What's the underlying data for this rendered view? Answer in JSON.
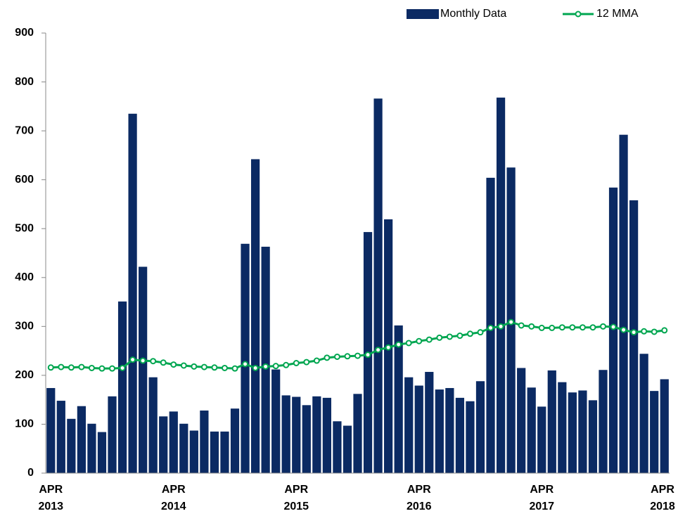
{
  "chart_data": {
    "type": "bar",
    "categories": [
      "APR 2013",
      null,
      null,
      null,
      null,
      null,
      null,
      null,
      null,
      null,
      null,
      null,
      "APR 2014",
      null,
      null,
      null,
      null,
      null,
      null,
      null,
      null,
      null,
      null,
      null,
      "APR 2015",
      null,
      null,
      null,
      null,
      null,
      null,
      null,
      null,
      null,
      null,
      null,
      "APR 2016",
      null,
      null,
      null,
      null,
      null,
      null,
      null,
      null,
      null,
      null,
      null,
      "APR 2017",
      null,
      null,
      null,
      null,
      null,
      null,
      null,
      null,
      null,
      null,
      null,
      "APR 2018"
    ],
    "series": [
      {
        "name": "Monthly Data",
        "type": "bar",
        "color": "#0b2a63",
        "values": [
          174,
          148,
          111,
          137,
          101,
          84,
          157,
          351,
          735,
          422,
          196,
          116,
          126,
          101,
          87,
          128,
          85,
          85,
          132,
          469,
          642,
          463,
          212,
          159,
          156,
          139,
          157,
          154,
          106,
          97,
          162,
          493,
          766,
          519,
          302,
          196,
          179,
          207,
          171,
          174,
          154,
          147,
          188,
          604,
          768,
          625,
          215,
          175,
          136,
          210,
          186,
          165,
          169,
          149,
          211,
          584,
          692,
          558,
          244,
          168,
          192
        ]
      },
      {
        "name": "12 MMA",
        "type": "line",
        "color": "#00a650",
        "values": [
          216,
          217,
          216,
          217,
          215,
          214,
          214,
          215,
          232,
          230,
          229,
          226,
          222,
          220,
          218,
          217,
          216,
          215,
          214,
          223,
          215,
          218,
          219,
          221,
          225,
          227,
          230,
          236,
          238,
          239,
          240,
          242,
          252,
          257,
          263,
          266,
          270,
          273,
          277,
          279,
          281,
          285,
          288,
          297,
          300,
          309,
          302,
          300,
          297,
          297,
          298,
          298,
          298,
          298,
          300,
          299,
          293,
          288,
          290,
          289,
          292
        ]
      }
    ],
    "ylim": [
      0,
      900
    ],
    "yticks": [
      0,
      100,
      200,
      300,
      400,
      500,
      600,
      700,
      800,
      900
    ],
    "grid": false,
    "legend": "top-right"
  }
}
